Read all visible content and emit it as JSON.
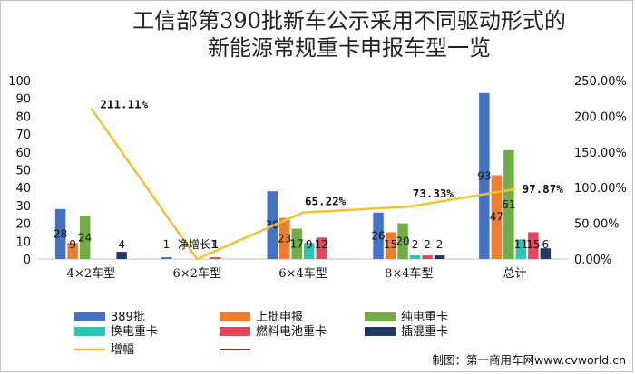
{
  "chart_data": {
    "type": "bar",
    "title_line1": "工信部第390批新车公示采用不同驱动形式的",
    "title_line2": "新能源常规重卡申报车型一览",
    "categories": [
      "4×2车型",
      "6×2车型",
      "6×4车型",
      "8×4车型",
      "总计"
    ],
    "ylim": [
      0,
      100
    ],
    "y_ticks": [
      "0",
      "10",
      "20",
      "30",
      "40",
      "50",
      "60",
      "70",
      "80",
      "90",
      "100"
    ],
    "y2lim": [
      0,
      250
    ],
    "y2_ticks": [
      "0.00%",
      "50.00%",
      "100.00%",
      "150.00%",
      "200.00%",
      "250.00%"
    ],
    "series": [
      {
        "name": "389批",
        "color": "#4472c4",
        "values": [
          28,
          1,
          38,
          26,
          93
        ],
        "labels": [
          "28",
          "1",
          "38",
          "26",
          "93"
        ]
      },
      {
        "name": "上批申报",
        "color": "#ed7d31",
        "values": [
          9,
          0,
          23,
          15,
          47
        ],
        "labels": [
          "9",
          "",
          "23",
          "15",
          "47"
        ]
      },
      {
        "name": "纯电重卡",
        "color": "#70ad47",
        "values": [
          24,
          0,
          17,
          20,
          61
        ],
        "labels": [
          "24",
          "",
          "17",
          "20",
          "61"
        ]
      },
      {
        "name": "换电重卡",
        "color": "#2ec4b6",
        "values": [
          0,
          0,
          9,
          2,
          11
        ],
        "labels": [
          "",
          "",
          "9",
          "2",
          "11"
        ]
      },
      {
        "name": "燃料电池重卡",
        "color": "#e0495d",
        "values": [
          0,
          1,
          12,
          2,
          15
        ],
        "labels": [
          "",
          "1",
          "12",
          "2",
          "15"
        ]
      },
      {
        "name": "插混重卡",
        "color": "#203864",
        "values": [
          4,
          0,
          0,
          2,
          6
        ],
        "labels": [
          "4",
          "",
          "",
          "2",
          "6"
        ]
      }
    ],
    "line": {
      "name": "增幅",
      "color": "#f2c230",
      "values": [
        211.11,
        0,
        65.22,
        73.33,
        97.87
      ],
      "labels": [
        "211.11%",
        "",
        "65.22%",
        "73.33%",
        "97.87%"
      ]
    },
    "annotation": "净增长1",
    "legend_position": "bottom"
  },
  "footer": {
    "source": "制图：第一商用车网www.cvworld.cn"
  }
}
